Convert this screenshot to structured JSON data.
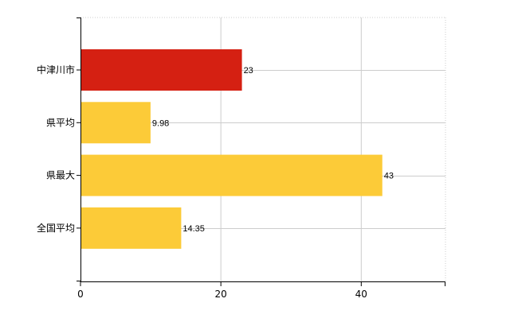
{
  "chart_data": {
    "type": "bar",
    "orientation": "horizontal",
    "title": "",
    "xlabel": "",
    "ylabel": "",
    "categories": [
      "中津川市",
      "県平均",
      "県最大",
      "全国平均"
    ],
    "values": [
      23,
      9.98,
      43,
      14.35
    ],
    "value_labels": [
      "23",
      "9.98",
      "43",
      "14.35"
    ],
    "bar_colors": [
      "#d52012",
      "#fccb38",
      "#fccb38",
      "#fccb38"
    ],
    "xlim": [
      0,
      52
    ],
    "x_ticks": [
      0,
      20,
      40
    ],
    "x_tick_labels": [
      "0",
      "20",
      "40"
    ],
    "grid": true,
    "grid_color": "#cccccc",
    "legend": "none"
  }
}
